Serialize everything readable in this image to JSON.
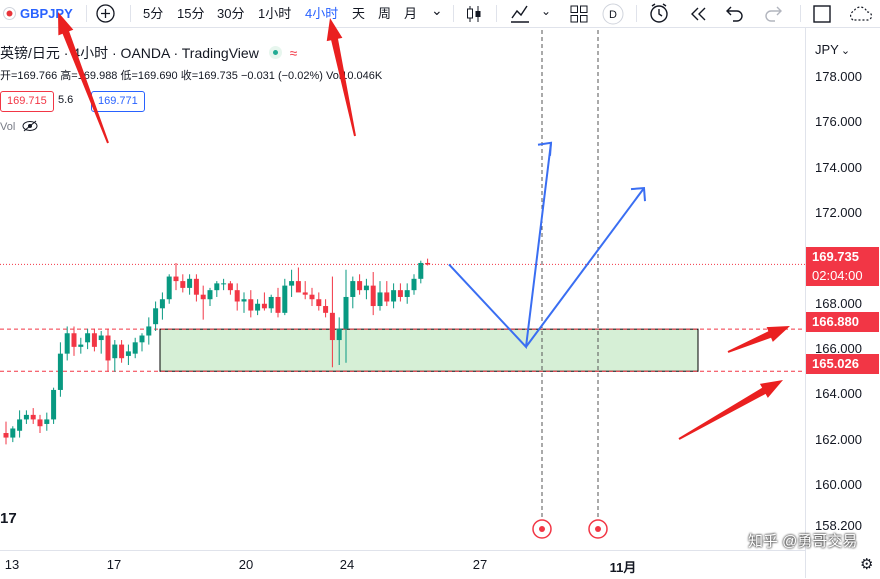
{
  "toolbar": {
    "symbol": "GBPJPY",
    "plus_icon": "+",
    "intervals": [
      "5分",
      "15分",
      "30分",
      "1小时",
      "4小时",
      "天",
      "周",
      "月"
    ],
    "active_interval": "4小时",
    "chevron": "⌄",
    "replay_badge": "D"
  },
  "legend": {
    "title": "英镑/日元 · 4小时 · OANDA · TradingView",
    "badge_icon": "≈",
    "ohlc": "开=169.766 高=169.988 低=169.690 收=169.735 −0.031 (−0.02%) Vol10.046K",
    "bid": "169.715",
    "spread": "5.6",
    "ask": "169.771",
    "vol_label": "Vol"
  },
  "axis": {
    "currency": "JPY",
    "currency_chevron": "⌄",
    "gear_icon": "⚙"
  },
  "tags": {
    "last_price": "169.735",
    "countdown": "02:04:00",
    "level_upper": "166.880",
    "level_lower": "165.026"
  },
  "logo": "17",
  "watermark": "知乎 @勇哥交易",
  "colors": {
    "up": "#089981",
    "down": "#f23645",
    "zone_fill": "#d6efd6",
    "projection": "#3a6ef2",
    "arrow": "#ea2020"
  },
  "chart_data": {
    "type": "candlestick",
    "ylim": [
      157.9,
      179.2
    ],
    "y_ticks": [
      158.2,
      160.0,
      162.0,
      164.0,
      166.0,
      168.0,
      172.0,
      174.0,
      176.0,
      178.0
    ],
    "y_tick_labels": [
      "158.200",
      "160.000",
      "162.000",
      "164.000",
      "166.000",
      "168.000",
      "172.000",
      "174.000",
      "176.000",
      "178.000"
    ],
    "x_ticks": [
      "13",
      "17",
      "20",
      "24",
      "27",
      "11月"
    ],
    "last_price": 169.735,
    "support_zone": [
      165.026,
      166.88
    ],
    "candles": [
      [
        162.3,
        162.8,
        161.8,
        162.1
      ],
      [
        162.1,
        162.6,
        161.9,
        162.5
      ],
      [
        162.4,
        163.3,
        162.1,
        162.9
      ],
      [
        162.9,
        163.3,
        162.7,
        163.1
      ],
      [
        163.1,
        163.4,
        162.7,
        162.9
      ],
      [
        162.9,
        163.1,
        162.3,
        162.6
      ],
      [
        162.7,
        163.2,
        162.4,
        162.9
      ],
      [
        162.9,
        164.3,
        162.7,
        164.2
      ],
      [
        164.2,
        166.3,
        163.9,
        165.8
      ],
      [
        165.8,
        167.0,
        165.5,
        166.7
      ],
      [
        166.7,
        167.0,
        165.7,
        166.1
      ],
      [
        166.1,
        166.5,
        165.8,
        166.2
      ],
      [
        166.3,
        166.9,
        166.0,
        166.7
      ],
      [
        166.7,
        166.9,
        165.9,
        166.1
      ],
      [
        166.4,
        166.8,
        165.8,
        166.6
      ],
      [
        166.6,
        166.9,
        165.0,
        165.5
      ],
      [
        165.6,
        166.4,
        165.0,
        166.2
      ],
      [
        166.2,
        166.4,
        165.4,
        165.6
      ],
      [
        165.7,
        166.2,
        165.3,
        165.9
      ],
      [
        165.8,
        166.5,
        165.6,
        166.3
      ],
      [
        166.3,
        166.7,
        165.9,
        166.6
      ],
      [
        166.6,
        167.4,
        166.2,
        167.0
      ],
      [
        167.1,
        168.1,
        166.8,
        167.8
      ],
      [
        167.8,
        168.5,
        167.3,
        168.2
      ],
      [
        168.2,
        169.3,
        168.0,
        169.2
      ],
      [
        169.2,
        169.8,
        168.6,
        169.0
      ],
      [
        169.0,
        169.3,
        168.5,
        168.7
      ],
      [
        168.7,
        169.3,
        168.4,
        169.1
      ],
      [
        169.1,
        169.3,
        168.1,
        168.4
      ],
      [
        168.4,
        168.8,
        167.3,
        168.2
      ],
      [
        168.2,
        168.7,
        167.9,
        168.6
      ],
      [
        168.6,
        169.0,
        168.3,
        168.9
      ],
      [
        168.9,
        169.1,
        168.6,
        168.9
      ],
      [
        168.9,
        169.0,
        168.4,
        168.6
      ],
      [
        168.6,
        168.9,
        167.7,
        168.1
      ],
      [
        168.1,
        168.5,
        167.6,
        168.2
      ],
      [
        168.2,
        168.6,
        167.4,
        167.7
      ],
      [
        167.7,
        168.2,
        167.5,
        168.0
      ],
      [
        168.0,
        168.5,
        167.7,
        167.8
      ],
      [
        167.8,
        168.4,
        167.6,
        168.3
      ],
      [
        168.3,
        168.7,
        167.4,
        167.6
      ],
      [
        167.6,
        169.1,
        167.5,
        168.8
      ],
      [
        168.8,
        169.5,
        168.3,
        169.0
      ],
      [
        169.0,
        169.6,
        168.6,
        168.5
      ],
      [
        168.5,
        169.0,
        168.2,
        168.4
      ],
      [
        168.4,
        168.7,
        167.9,
        168.2
      ],
      [
        168.2,
        168.5,
        167.7,
        167.9
      ],
      [
        167.9,
        168.2,
        167.4,
        167.6
      ],
      [
        167.6,
        169.2,
        165.2,
        166.4
      ],
      [
        166.4,
        167.4,
        165.3,
        166.9
      ],
      [
        166.9,
        169.5,
        165.4,
        168.3
      ],
      [
        168.3,
        169.2,
        167.8,
        169.0
      ],
      [
        169.0,
        169.3,
        168.4,
        168.6
      ],
      [
        168.6,
        169.1,
        168.2,
        168.8
      ],
      [
        168.8,
        169.4,
        167.5,
        167.9
      ],
      [
        167.9,
        169.0,
        167.7,
        168.5
      ],
      [
        168.5,
        169.0,
        167.9,
        168.1
      ],
      [
        168.1,
        168.9,
        167.8,
        168.6
      ],
      [
        168.6,
        168.9,
        168.1,
        168.3
      ],
      [
        168.3,
        168.9,
        168.0,
        168.6
      ],
      [
        168.6,
        169.3,
        168.4,
        169.1
      ],
      [
        169.1,
        169.9,
        168.9,
        169.8
      ],
      [
        169.8,
        169.99,
        169.69,
        169.735
      ]
    ],
    "projection_a": [
      [
        0,
        169.735
      ],
      [
        1,
        166.1
      ],
      [
        2,
        175.1
      ]
    ],
    "projection_b": [
      [
        0,
        166.1
      ],
      [
        1,
        173.1
      ]
    ]
  }
}
